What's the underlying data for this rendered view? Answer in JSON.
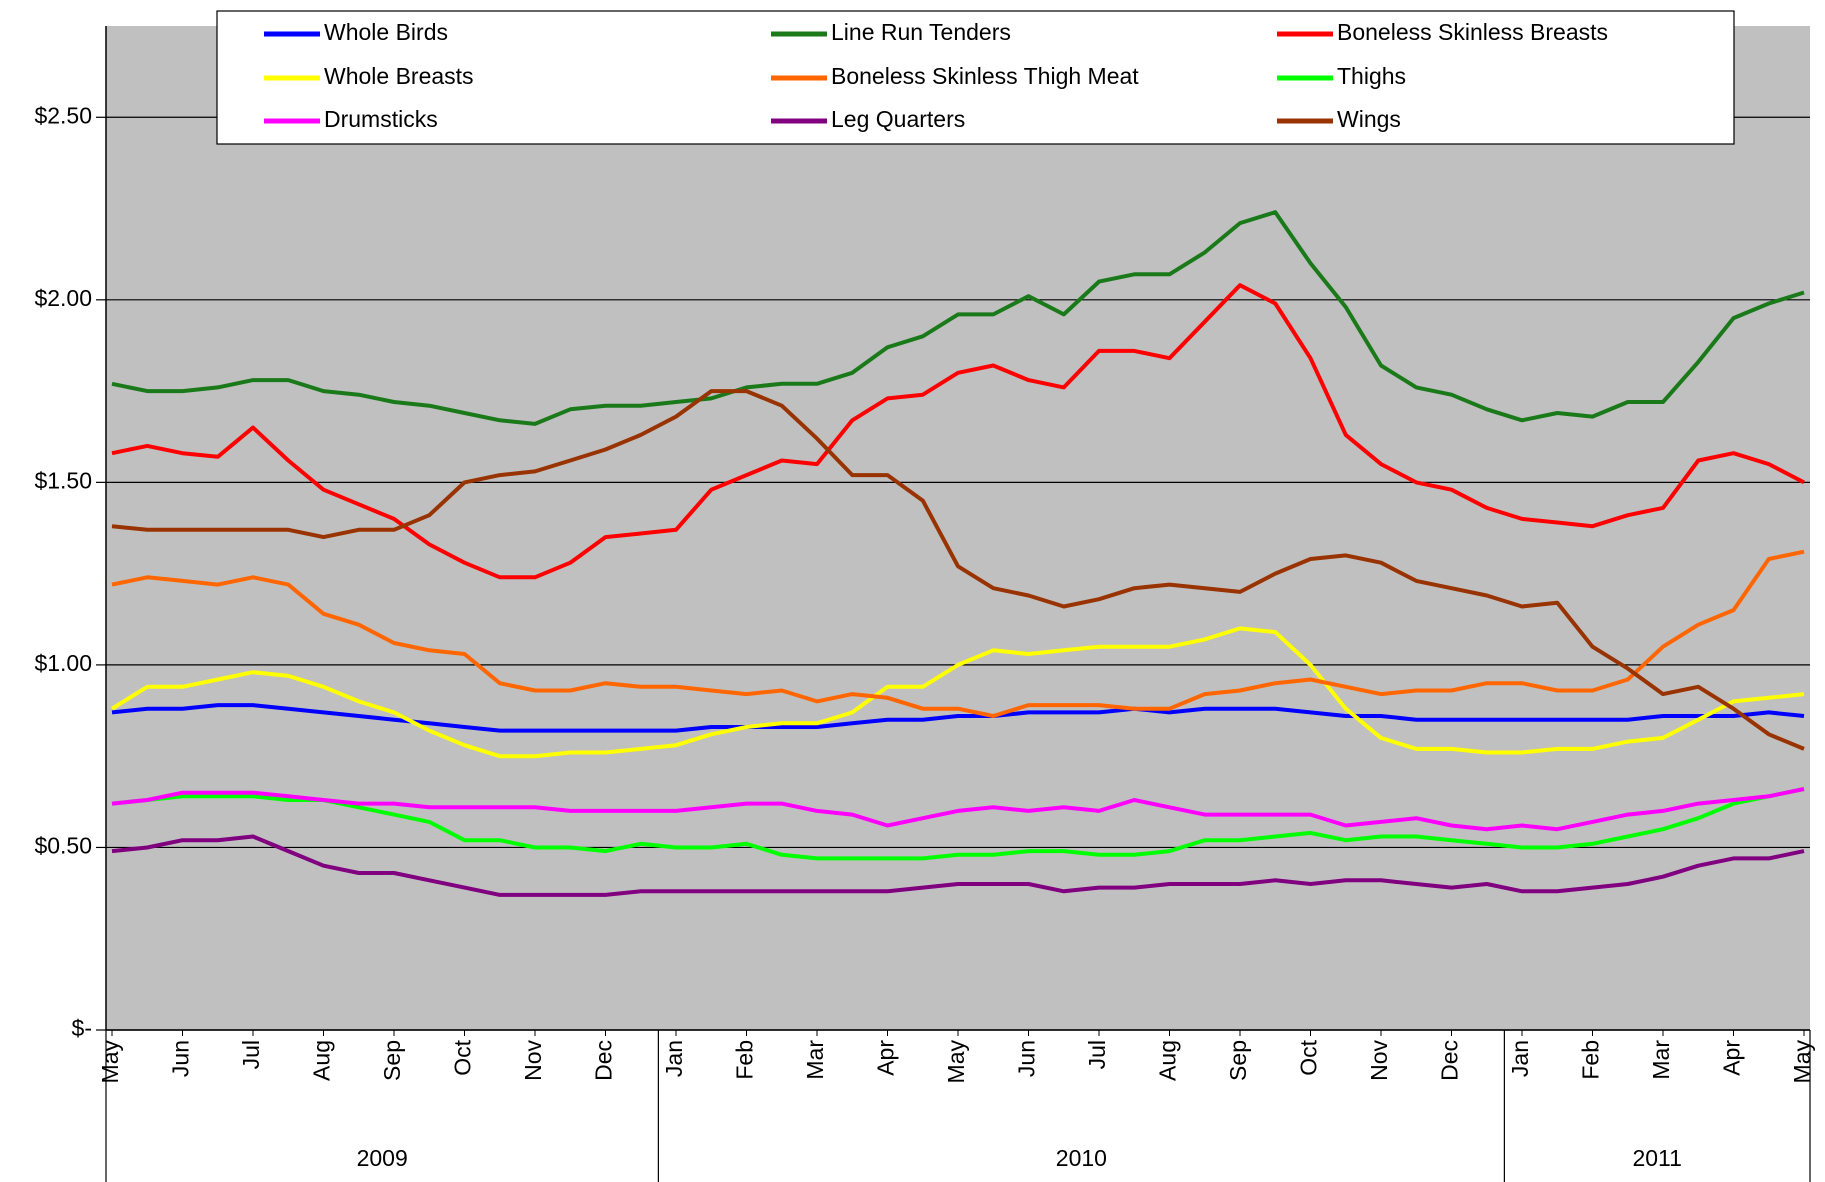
{
  "chart_data": {
    "type": "line",
    "categories": [
      "May",
      null,
      "Jun",
      null,
      "Jul",
      null,
      "Aug",
      null,
      "Sep",
      null,
      "Oct",
      null,
      "Nov",
      null,
      "Dec",
      null,
      "Jan",
      null,
      "Feb",
      null,
      "Mar",
      null,
      "Apr",
      null,
      "May",
      null,
      "Jun",
      null,
      "Jul",
      null,
      "Aug",
      null,
      "Sep",
      null,
      "Oct",
      null,
      "Nov",
      null,
      "Dec",
      null,
      "Jan",
      null,
      "Feb",
      null,
      "Mar",
      null,
      "Apr",
      null,
      "May"
    ],
    "x_groups": [
      {
        "label": "2009",
        "count": 16
      },
      {
        "label": "2010",
        "count": 24
      },
      {
        "label": "2011",
        "count": 9
      }
    ],
    "ylim": [
      0,
      2.75
    ],
    "yticks": [
      {
        "value": 0,
        "label": "$-"
      },
      {
        "value": 0.5,
        "label": "$0.50"
      },
      {
        "value": 1,
        "label": "$1.00"
      },
      {
        "value": 1.5,
        "label": "$1.50"
      },
      {
        "value": 2,
        "label": "$2.00"
      },
      {
        "value": 2.5,
        "label": "$2.50"
      }
    ],
    "grid": true,
    "legend": "top",
    "series": [
      {
        "name": "Whole Birds",
        "color": "#0000ff",
        "values": [
          0.87,
          0.88,
          0.88,
          0.89,
          0.89,
          0.88,
          0.87,
          0.86,
          0.85,
          0.84,
          0.83,
          0.82,
          0.82,
          0.82,
          0.82,
          0.82,
          0.82,
          0.83,
          0.83,
          0.83,
          0.83,
          0.84,
          0.85,
          0.85,
          0.86,
          0.86,
          0.87,
          0.87,
          0.87,
          0.88,
          0.87,
          0.88,
          0.88,
          0.88,
          0.87,
          0.86,
          0.86,
          0.85,
          0.85,
          0.85,
          0.85,
          0.85,
          0.85,
          0.85,
          0.86,
          0.86,
          0.86,
          0.87,
          0.86
        ]
      },
      {
        "name": "Line Run Tenders",
        "color": "#1a7a1a",
        "values": [
          1.77,
          1.75,
          1.75,
          1.76,
          1.78,
          1.78,
          1.75,
          1.74,
          1.72,
          1.71,
          1.69,
          1.67,
          1.66,
          1.7,
          1.71,
          1.71,
          1.72,
          1.73,
          1.76,
          1.77,
          1.77,
          1.8,
          1.87,
          1.9,
          1.96,
          1.96,
          2.01,
          1.96,
          2.05,
          2.07,
          2.07,
          2.13,
          2.21,
          2.24,
          2.1,
          1.98,
          1.82,
          1.76,
          1.74,
          1.7,
          1.67,
          1.69,
          1.68,
          1.72,
          1.72,
          1.83,
          1.95,
          1.99,
          2.02
        ]
      },
      {
        "name": "Boneless Skinless Breasts",
        "color": "#ff0000",
        "values": [
          1.58,
          1.6,
          1.58,
          1.57,
          1.65,
          1.56,
          1.48,
          1.44,
          1.4,
          1.33,
          1.28,
          1.24,
          1.24,
          1.28,
          1.35,
          1.36,
          1.37,
          1.48,
          1.52,
          1.56,
          1.55,
          1.67,
          1.73,
          1.74,
          1.8,
          1.82,
          1.78,
          1.76,
          1.86,
          1.86,
          1.84,
          1.94,
          2.04,
          1.99,
          1.84,
          1.63,
          1.55,
          1.5,
          1.48,
          1.43,
          1.4,
          1.39,
          1.38,
          1.41,
          1.43,
          1.56,
          1.58,
          1.55,
          1.5
        ]
      },
      {
        "name": "Whole Breasts",
        "color": "#ffff00",
        "values": [
          0.88,
          0.94,
          0.94,
          0.96,
          0.98,
          0.97,
          0.94,
          0.9,
          0.87,
          0.82,
          0.78,
          0.75,
          0.75,
          0.76,
          0.76,
          0.77,
          0.78,
          0.81,
          0.83,
          0.84,
          0.84,
          0.87,
          0.94,
          0.94,
          1.0,
          1.04,
          1.03,
          1.04,
          1.05,
          1.05,
          1.05,
          1.07,
          1.1,
          1.09,
          1.0,
          0.88,
          0.8,
          0.77,
          0.77,
          0.76,
          0.76,
          0.77,
          0.77,
          0.79,
          0.8,
          0.85,
          0.9,
          0.91,
          0.92
        ]
      },
      {
        "name": "Boneless Skinless Thigh Meat",
        "color": "#ff6600",
        "values": [
          1.22,
          1.24,
          1.23,
          1.22,
          1.24,
          1.22,
          1.14,
          1.11,
          1.06,
          1.04,
          1.03,
          0.95,
          0.93,
          0.93,
          0.95,
          0.94,
          0.94,
          0.93,
          0.92,
          0.93,
          0.9,
          0.92,
          0.91,
          0.88,
          0.88,
          0.86,
          0.89,
          0.89,
          0.89,
          0.88,
          0.88,
          0.92,
          0.93,
          0.95,
          0.96,
          0.94,
          0.92,
          0.93,
          0.93,
          0.95,
          0.95,
          0.93,
          0.93,
          0.96,
          1.05,
          1.11,
          1.15,
          1.29,
          1.31
        ]
      },
      {
        "name": "Thighs",
        "color": "#00ff00",
        "values": [
          0.62,
          0.63,
          0.64,
          0.64,
          0.64,
          0.63,
          0.63,
          0.61,
          0.59,
          0.57,
          0.52,
          0.52,
          0.5,
          0.5,
          0.49,
          0.51,
          0.5,
          0.5,
          0.51,
          0.48,
          0.47,
          0.47,
          0.47,
          0.47,
          0.48,
          0.48,
          0.49,
          0.49,
          0.48,
          0.48,
          0.49,
          0.52,
          0.52,
          0.53,
          0.54,
          0.52,
          0.53,
          0.53,
          0.52,
          0.51,
          0.5,
          0.5,
          0.51,
          0.53,
          0.55,
          0.58,
          0.62,
          0.64,
          0.66
        ]
      },
      {
        "name": "Drumsticks",
        "color": "#ff00ff",
        "values": [
          0.62,
          0.63,
          0.65,
          0.65,
          0.65,
          0.64,
          0.63,
          0.62,
          0.62,
          0.61,
          0.61,
          0.61,
          0.61,
          0.6,
          0.6,
          0.6,
          0.6,
          0.61,
          0.62,
          0.62,
          0.6,
          0.59,
          0.56,
          0.58,
          0.6,
          0.61,
          0.6,
          0.61,
          0.6,
          0.63,
          0.61,
          0.59,
          0.59,
          0.59,
          0.59,
          0.56,
          0.57,
          0.58,
          0.56,
          0.55,
          0.56,
          0.55,
          0.57,
          0.59,
          0.6,
          0.62,
          0.63,
          0.64,
          0.66
        ]
      },
      {
        "name": "Leg Quarters",
        "color": "#800080",
        "values": [
          0.49,
          0.5,
          0.52,
          0.52,
          0.53,
          0.49,
          0.45,
          0.43,
          0.43,
          0.41,
          0.39,
          0.37,
          0.37,
          0.37,
          0.37,
          0.38,
          0.38,
          0.38,
          0.38,
          0.38,
          0.38,
          0.38,
          0.38,
          0.39,
          0.4,
          0.4,
          0.4,
          0.38,
          0.39,
          0.39,
          0.4,
          0.4,
          0.4,
          0.41,
          0.4,
          0.41,
          0.41,
          0.4,
          0.39,
          0.4,
          0.38,
          0.38,
          0.39,
          0.4,
          0.42,
          0.45,
          0.47,
          0.47,
          0.49
        ]
      },
      {
        "name": "Wings",
        "color": "#993300",
        "values": [
          1.38,
          1.37,
          1.37,
          1.37,
          1.37,
          1.37,
          1.35,
          1.37,
          1.37,
          1.41,
          1.5,
          1.52,
          1.53,
          1.56,
          1.59,
          1.63,
          1.68,
          1.75,
          1.75,
          1.71,
          1.62,
          1.52,
          1.52,
          1.45,
          1.27,
          1.21,
          1.19,
          1.16,
          1.18,
          1.21,
          1.22,
          1.21,
          1.2,
          1.25,
          1.29,
          1.3,
          1.28,
          1.23,
          1.21,
          1.19,
          1.16,
          1.17,
          1.05,
          0.99,
          0.92,
          0.94,
          0.88,
          0.81,
          0.77
        ]
      }
    ]
  }
}
